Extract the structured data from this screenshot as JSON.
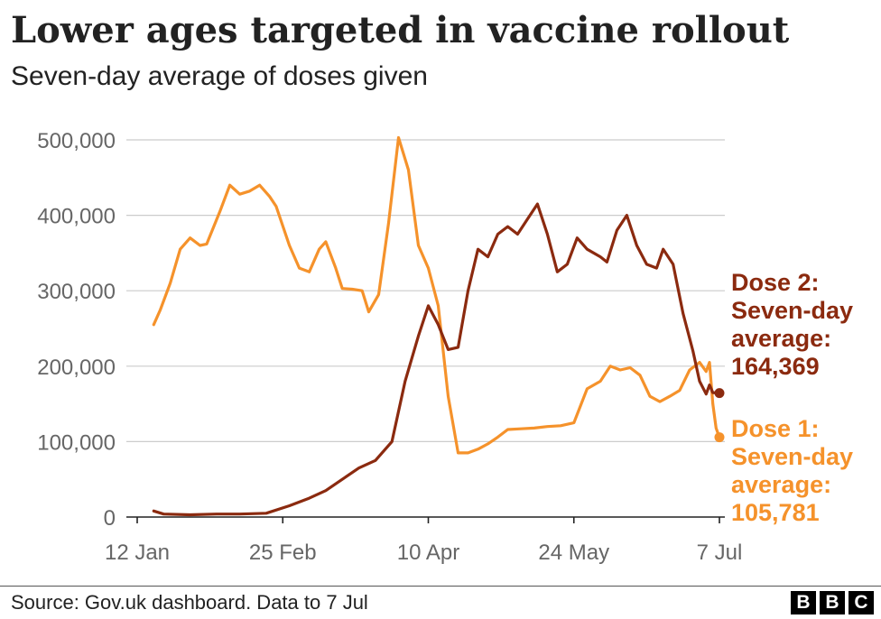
{
  "header": {
    "title": "Lower ages targeted in vaccine rollout",
    "subtitle": "Seven-day average of doses given"
  },
  "footer": {
    "source": "Source: Gov.uk dashboard. Data to 7 Jul",
    "logo_letters": [
      "B",
      "B",
      "C"
    ]
  },
  "colors": {
    "dose1": "#f5922b",
    "dose2": "#8b2a0f",
    "grid": "#cccccc",
    "axis": "#222222"
  },
  "chart_data": {
    "type": "line",
    "title": "Lower ages targeted in vaccine rollout",
    "subtitle": "Seven-day average of doses given",
    "xlabel": "",
    "ylabel": "",
    "x_range": [
      "2021-01-12",
      "2021-07-07"
    ],
    "ylim": [
      0,
      500000
    ],
    "yticks": [
      0,
      100000,
      200000,
      300000,
      400000,
      500000
    ],
    "ytick_labels": [
      "0",
      "100,000",
      "200,000",
      "300,000",
      "400,000",
      "500,000"
    ],
    "xticks": [
      "2021-01-12",
      "2021-02-25",
      "2021-04-10",
      "2021-05-24",
      "2021-07-07"
    ],
    "xtick_labels": [
      "12 Jan",
      "25 Feb",
      "10 Apr",
      "24 May",
      "7 Jul"
    ],
    "grid": "horizontal",
    "legend": "direct labels at line ends (right)",
    "series": [
      {
        "name": "Dose 1",
        "color": "#f5922b",
        "end_label": [
          "Dose 1:",
          "Seven-day",
          "average:",
          "105,781"
        ],
        "end_value": 105781,
        "points": [
          [
            "2021-01-17",
            255000
          ],
          [
            "2021-01-19",
            275000
          ],
          [
            "2021-01-22",
            310000
          ],
          [
            "2021-01-25",
            355000
          ],
          [
            "2021-01-28",
            370000
          ],
          [
            "2021-01-31",
            360000
          ],
          [
            "2021-02-02",
            362000
          ],
          [
            "2021-02-06",
            405000
          ],
          [
            "2021-02-09",
            440000
          ],
          [
            "2021-02-12",
            428000
          ],
          [
            "2021-02-15",
            432000
          ],
          [
            "2021-02-18",
            440000
          ],
          [
            "2021-02-21",
            425000
          ],
          [
            "2021-02-23",
            412000
          ],
          [
            "2021-02-27",
            360000
          ],
          [
            "2021-03-02",
            330000
          ],
          [
            "2021-03-05",
            325000
          ],
          [
            "2021-03-08",
            355000
          ],
          [
            "2021-03-10",
            365000
          ],
          [
            "2021-03-13",
            330000
          ],
          [
            "2021-03-15",
            303000
          ],
          [
            "2021-03-18",
            302000
          ],
          [
            "2021-03-21",
            300000
          ],
          [
            "2021-03-23",
            272000
          ],
          [
            "2021-03-26",
            295000
          ],
          [
            "2021-03-29",
            390000
          ],
          [
            "2021-04-01",
            503000
          ],
          [
            "2021-04-04",
            460000
          ],
          [
            "2021-04-07",
            360000
          ],
          [
            "2021-04-10",
            330000
          ],
          [
            "2021-04-13",
            280000
          ],
          [
            "2021-04-16",
            160000
          ],
          [
            "2021-04-19",
            85000
          ],
          [
            "2021-04-22",
            85000
          ],
          [
            "2021-04-25",
            90000
          ],
          [
            "2021-04-28",
            97000
          ],
          [
            "2021-05-01",
            106000
          ],
          [
            "2021-05-04",
            116000
          ],
          [
            "2021-05-08",
            117000
          ],
          [
            "2021-05-12",
            118000
          ],
          [
            "2021-05-16",
            120000
          ],
          [
            "2021-05-20",
            121000
          ],
          [
            "2021-05-24",
            125000
          ],
          [
            "2021-05-28",
            170000
          ],
          [
            "2021-06-01",
            180000
          ],
          [
            "2021-06-04",
            200000
          ],
          [
            "2021-06-07",
            195000
          ],
          [
            "2021-06-10",
            198000
          ],
          [
            "2021-06-13",
            188000
          ],
          [
            "2021-06-16",
            160000
          ],
          [
            "2021-06-19",
            153000
          ],
          [
            "2021-06-22",
            160000
          ],
          [
            "2021-06-25",
            168000
          ],
          [
            "2021-06-28",
            195000
          ],
          [
            "2021-07-01",
            205000
          ],
          [
            "2021-07-03",
            193000
          ],
          [
            "2021-07-04",
            205000
          ],
          [
            "2021-07-05",
            150000
          ],
          [
            "2021-07-06",
            118000
          ],
          [
            "2021-07-07",
            105781
          ]
        ]
      },
      {
        "name": "Dose 2",
        "color": "#8b2a0f",
        "end_label": [
          "Dose 2:",
          "Seven-day",
          "average:",
          "164,369"
        ],
        "end_value": 164369,
        "points": [
          [
            "2021-01-17",
            8000
          ],
          [
            "2021-01-20",
            4000
          ],
          [
            "2021-01-28",
            3000
          ],
          [
            "2021-02-05",
            4000
          ],
          [
            "2021-02-12",
            4000
          ],
          [
            "2021-02-20",
            5000
          ],
          [
            "2021-02-27",
            15000
          ],
          [
            "2021-03-05",
            25000
          ],
          [
            "2021-03-10",
            35000
          ],
          [
            "2021-03-15",
            50000
          ],
          [
            "2021-03-20",
            65000
          ],
          [
            "2021-03-25",
            75000
          ],
          [
            "2021-03-30",
            100000
          ],
          [
            "2021-04-03",
            180000
          ],
          [
            "2021-04-07",
            240000
          ],
          [
            "2021-04-10",
            280000
          ],
          [
            "2021-04-13",
            255000
          ],
          [
            "2021-04-16",
            222000
          ],
          [
            "2021-04-19",
            225000
          ],
          [
            "2021-04-22",
            300000
          ],
          [
            "2021-04-25",
            355000
          ],
          [
            "2021-04-28",
            345000
          ],
          [
            "2021-05-01",
            375000
          ],
          [
            "2021-05-04",
            385000
          ],
          [
            "2021-05-07",
            375000
          ],
          [
            "2021-05-10",
            395000
          ],
          [
            "2021-05-13",
            415000
          ],
          [
            "2021-05-16",
            375000
          ],
          [
            "2021-05-19",
            325000
          ],
          [
            "2021-05-22",
            335000
          ],
          [
            "2021-05-25",
            370000
          ],
          [
            "2021-05-28",
            355000
          ],
          [
            "2021-06-01",
            345000
          ],
          [
            "2021-06-03",
            338000
          ],
          [
            "2021-06-06",
            380000
          ],
          [
            "2021-06-09",
            400000
          ],
          [
            "2021-06-12",
            360000
          ],
          [
            "2021-06-15",
            335000
          ],
          [
            "2021-06-18",
            330000
          ],
          [
            "2021-06-20",
            355000
          ],
          [
            "2021-06-23",
            335000
          ],
          [
            "2021-06-26",
            270000
          ],
          [
            "2021-06-29",
            220000
          ],
          [
            "2021-07-01",
            180000
          ],
          [
            "2021-07-03",
            163000
          ],
          [
            "2021-07-04",
            175000
          ],
          [
            "2021-07-05",
            165000
          ],
          [
            "2021-07-07",
            164369
          ]
        ]
      }
    ]
  }
}
